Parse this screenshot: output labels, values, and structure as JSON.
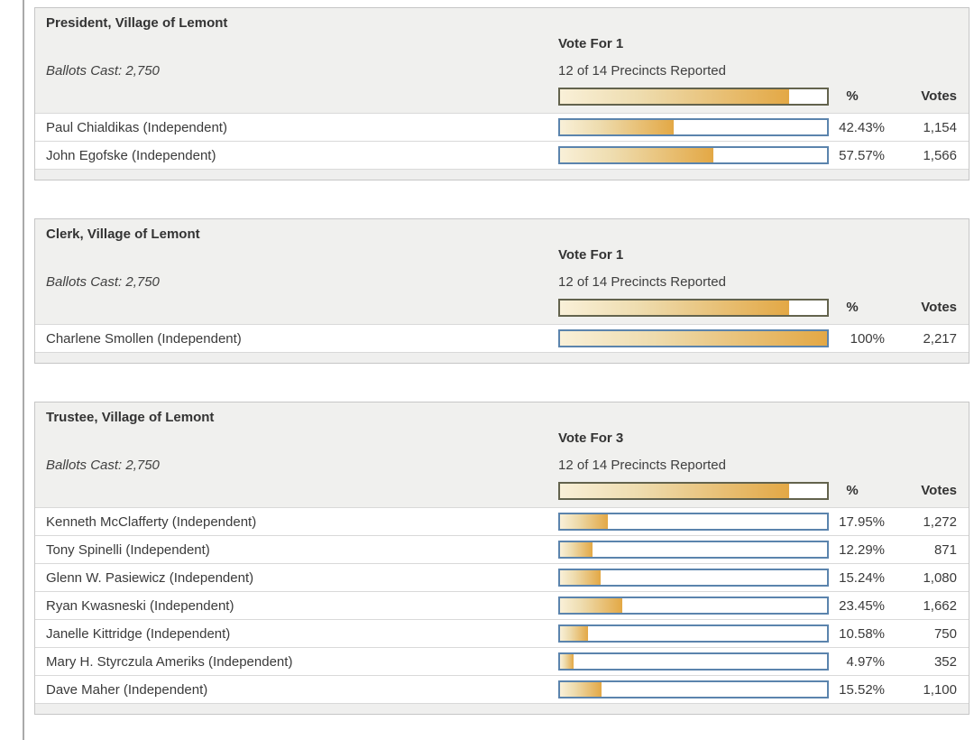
{
  "columns": {
    "pct_header": "%",
    "votes_header": "Votes"
  },
  "colors": {
    "bar_gradient_start": "#f9f0d8",
    "bar_gradient_end": "#e3a845",
    "precinct_bar_border": "#63634d",
    "candidate_bar_border": "#5b84ad",
    "header_background": "#f0f0ee",
    "table_border": "#c6c6c6"
  },
  "contests": [
    {
      "title": "President, Village of Lemont",
      "ballots_cast": "Ballots Cast: 2,750",
      "vote_for": "Vote For 1",
      "precincts_reported": "12 of 14 Precincts Reported",
      "precincts_pct": 85.71,
      "candidates": [
        {
          "name": "Paul Chialdikas (Independent)",
          "pct": 42.43,
          "pct_label": "42.43%",
          "votes": "1,154"
        },
        {
          "name": "John Egofske (Independent)",
          "pct": 57.57,
          "pct_label": "57.57%",
          "votes": "1,566"
        }
      ]
    },
    {
      "title": "Clerk, Village of Lemont",
      "ballots_cast": "Ballots Cast: 2,750",
      "vote_for": "Vote For 1",
      "precincts_reported": "12 of 14 Precincts Reported",
      "precincts_pct": 85.71,
      "candidates": [
        {
          "name": "Charlene Smollen (Independent)",
          "pct": 100,
          "pct_label": "100%",
          "votes": "2,217"
        }
      ]
    },
    {
      "title": "Trustee, Village of Lemont",
      "ballots_cast": "Ballots Cast: 2,750",
      "vote_for": "Vote For 3",
      "precincts_reported": "12 of 14 Precincts Reported",
      "precincts_pct": 85.71,
      "candidates": [
        {
          "name": "Kenneth McClafferty (Independent)",
          "pct": 17.95,
          "pct_label": "17.95%",
          "votes": "1,272"
        },
        {
          "name": "Tony Spinelli (Independent)",
          "pct": 12.29,
          "pct_label": "12.29%",
          "votes": "871"
        },
        {
          "name": "Glenn W. Pasiewicz (Independent)",
          "pct": 15.24,
          "pct_label": "15.24%",
          "votes": "1,080"
        },
        {
          "name": "Ryan Kwasneski (Independent)",
          "pct": 23.45,
          "pct_label": "23.45%",
          "votes": "1,662"
        },
        {
          "name": "Janelle Kittridge (Independent)",
          "pct": 10.58,
          "pct_label": "10.58%",
          "votes": "750"
        },
        {
          "name": "Mary H. Styrczula Ameriks (Independent)",
          "pct": 4.97,
          "pct_label": "4.97%",
          "votes": "352"
        },
        {
          "name": "Dave Maher (Independent)",
          "pct": 15.52,
          "pct_label": "15.52%",
          "votes": "1,100"
        }
      ]
    }
  ]
}
